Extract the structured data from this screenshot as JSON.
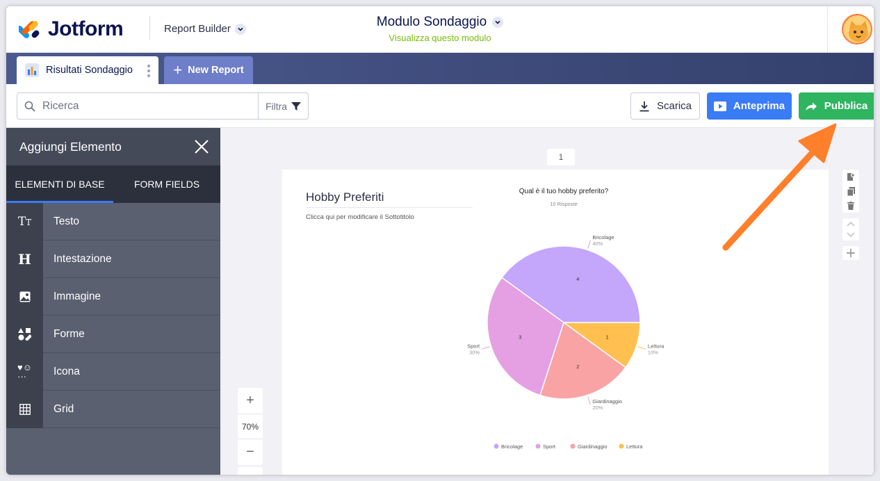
{
  "header": {
    "logo_text": "Jotform",
    "report_builder_label": "Report Builder",
    "form_title": "Modulo Sondaggio",
    "form_subtitle": "Visualizza questo modulo"
  },
  "tabs": {
    "active_label": "Risultati Sondaggio",
    "new_report_label": "New Report"
  },
  "toolbar": {
    "search_placeholder": "Ricerca",
    "filter_label": "Filtra",
    "download_label": "Scarica",
    "preview_label": "Anteprima",
    "publish_label": "Pubblica"
  },
  "sidebar": {
    "title": "Aggiungi Elemento",
    "tabs": [
      "ELEMENTI DI BASE",
      "FORM FIELDS"
    ],
    "items": [
      {
        "label": "Testo",
        "icon": "text-icon"
      },
      {
        "label": "Intestazione",
        "icon": "heading-icon"
      },
      {
        "label": "Immagine",
        "icon": "image-icon"
      },
      {
        "label": "Forme",
        "icon": "shapes-icon"
      },
      {
        "label": "Icona",
        "icon": "icon-icon"
      },
      {
        "label": "Grid",
        "icon": "grid-icon"
      }
    ]
  },
  "canvas": {
    "page_number": "1",
    "report_title": "Hobby Preferiti",
    "report_subtitle": "Clicca qui per modificare il Sottotitolo",
    "zoom_level": "70%"
  },
  "chart_data": {
    "type": "pie",
    "title": "Qual è il tuo hobby preferito?",
    "subtitle": "10 Risposte",
    "categories": [
      "Bricolage",
      "Sport",
      "Giardinaggio",
      "Lettura"
    ],
    "values": [
      4,
      3,
      2,
      1
    ],
    "percent_labels": [
      "40%",
      "30%",
      "20%",
      "10%"
    ],
    "colors": [
      "#c4a6fb",
      "#e4a0e3",
      "#f9a3a5",
      "#ffc04f"
    ],
    "legend_position": "bottom"
  },
  "colors": {
    "accent_blue": "#3a7bf6",
    "publish_green": "#2fb460",
    "annotation_arrow": "#ff7f2a",
    "navy": "#0a1551"
  }
}
